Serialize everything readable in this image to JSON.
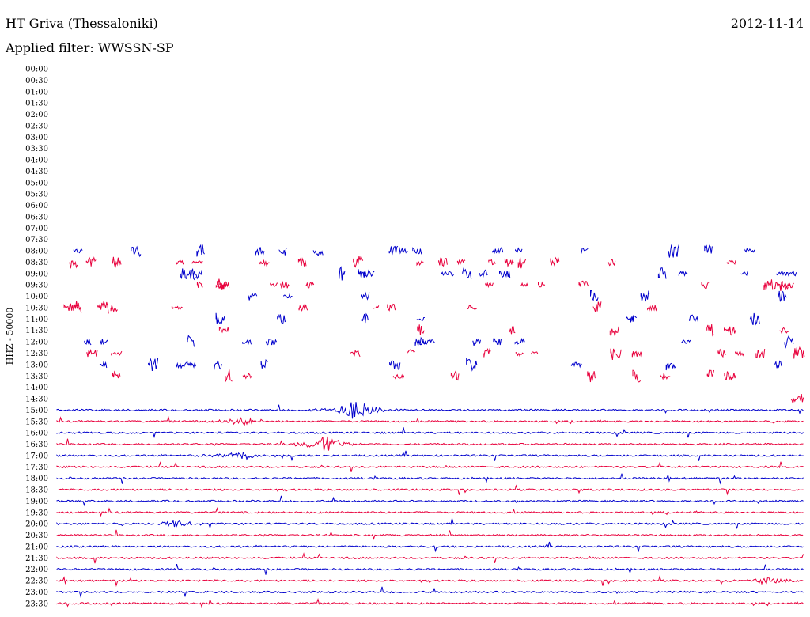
{
  "header": {
    "station": "HT Griva (Thessaloniki)",
    "date": "2012-11-14",
    "filter": "Applied filter: WWSSN-SP"
  },
  "chart_data": {
    "type": "line",
    "title": "HT Griva (Thessaloniki)",
    "ylabel": "HHZ - 50000",
    "row_labels": [
      "00:00",
      "00:30",
      "01:00",
      "01:30",
      "02:00",
      "02:30",
      "03:00",
      "03:30",
      "04:00",
      "04:30",
      "05:00",
      "05:30",
      "06:00",
      "06:30",
      "07:00",
      "07:30",
      "08:00",
      "08:30",
      "09:00",
      "09:30",
      "10:00",
      "10:30",
      "11:00",
      "11:30",
      "12:00",
      "12:30",
      "13:00",
      "13:30",
      "14:00",
      "14:30",
      "15:00",
      "15:30",
      "16:00",
      "16:30",
      "17:00",
      "17:30",
      "18:00",
      "18:30",
      "19:00",
      "19:30",
      "20:00",
      "20:30",
      "21:00",
      "21:30",
      "22:00",
      "22:30",
      "23:00",
      "23:30"
    ],
    "trace_colors": [
      "#0000cc",
      "#e8003c"
    ],
    "continuous_from": "15:00",
    "events": [
      {
        "row": "15:00",
        "x": 0.4,
        "amplitude": 14
      },
      {
        "row": "15:30",
        "x": 0.25,
        "amplitude": 6
      },
      {
        "row": "16:30",
        "x": 0.36,
        "amplitude": 12
      },
      {
        "row": "17:00",
        "x": 0.25,
        "amplitude": 6
      },
      {
        "row": "20:00",
        "x": 0.16,
        "amplitude": 5
      },
      {
        "row": "22:30",
        "x": 0.95,
        "amplitude": 5
      }
    ]
  }
}
